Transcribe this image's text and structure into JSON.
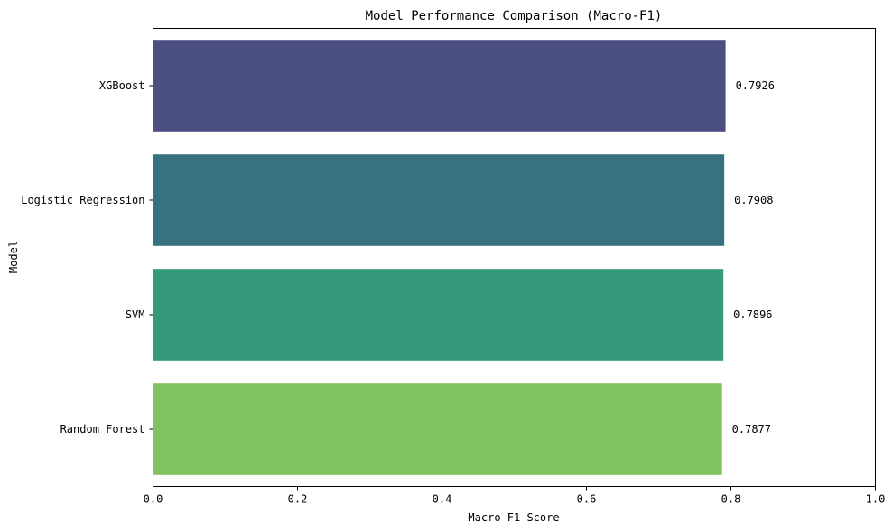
{
  "chart_data": {
    "type": "bar",
    "orientation": "horizontal",
    "title": "Model Performance Comparison (Macro-F1)",
    "xlabel": "Macro-F1 Score",
    "ylabel": "Model",
    "xlim": [
      0,
      1
    ],
    "xticks": [
      0.0,
      0.2,
      0.4,
      0.6,
      0.8,
      1.0
    ],
    "xtick_labels": [
      "0.0",
      "0.2",
      "0.4",
      "0.6",
      "0.8",
      "1.0"
    ],
    "categories": [
      "XGBoost",
      "Logistic Regression",
      "SVM",
      "Random Forest"
    ],
    "values": [
      0.7926,
      0.7908,
      0.7896,
      0.7877
    ],
    "value_labels": [
      "0.7926",
      "0.7908",
      "0.7896",
      "0.7877"
    ],
    "colors": [
      "#4a4e80",
      "#37727f",
      "#35997c",
      "#7fc25f"
    ],
    "grid": false,
    "legend": "none"
  }
}
